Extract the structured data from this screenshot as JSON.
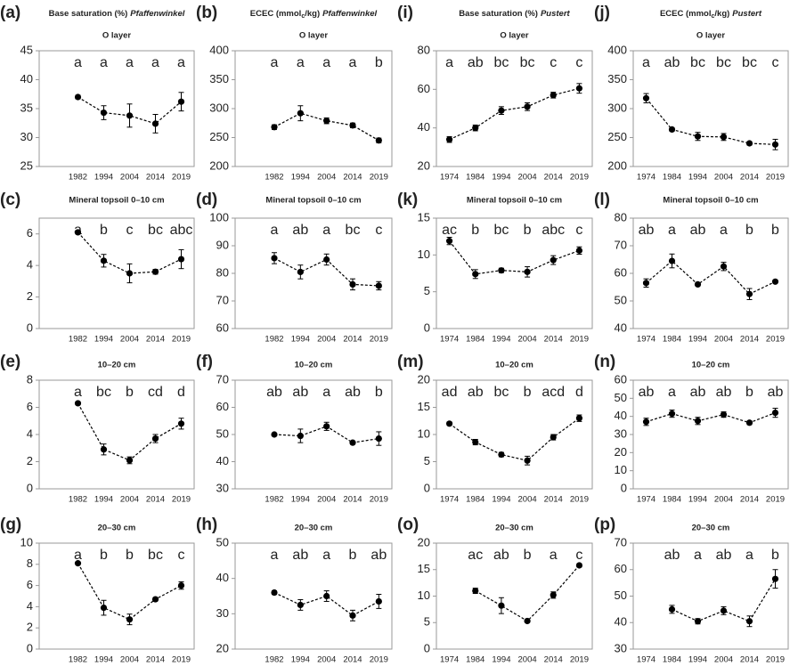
{
  "chart_data": [
    {
      "type": "line",
      "label": "(a)",
      "title": [
        "Base saturation (%)"
      ],
      "site": "Pfaffenwinkel",
      "subtitle": "O layer",
      "categories": [
        null,
        "1982",
        "1994",
        "2004",
        "2014",
        "2019"
      ],
      "values": [
        null,
        37,
        34.3,
        33.8,
        32.4,
        36.2
      ],
      "errors": [
        null,
        0.3,
        1.2,
        2,
        1.6,
        1.6
      ],
      "letters": [
        null,
        "a",
        "a",
        "a",
        "a",
        "a"
      ],
      "ylim": [
        25,
        45
      ],
      "yticks": [
        25,
        30,
        35,
        40,
        45
      ]
    },
    {
      "type": "line",
      "label": "(b)",
      "title": [
        "ECEC (mmol",
        "c",
        "/kg)"
      ],
      "site": "Pfaffenwinkel",
      "subtitle": "O layer",
      "categories": [
        null,
        "1982",
        "1994",
        "2004",
        "2014",
        "2019"
      ],
      "values": [
        null,
        268,
        292,
        279,
        271,
        245
      ],
      "errors": [
        null,
        4,
        13,
        5,
        4,
        4
      ],
      "letters": [
        null,
        "a",
        "a",
        "a",
        "a",
        "b"
      ],
      "ylim": [
        200,
        400
      ],
      "yticks": [
        200,
        250,
        300,
        350,
        400
      ]
    },
    {
      "type": "line",
      "label": "(i)",
      "title": [
        "Base saturation (%)"
      ],
      "site": "Pustert",
      "subtitle": "O layer",
      "categories": [
        "1974",
        "1984",
        "1994",
        "2004",
        "2014",
        "2019"
      ],
      "values": [
        34,
        40,
        49,
        51,
        57,
        60.5
      ],
      "errors": [
        1.5,
        1.5,
        2,
        2,
        1.5,
        2.5
      ],
      "letters": [
        "a",
        "ab",
        "bc",
        "bc",
        "c",
        "c"
      ],
      "ylim": [
        20,
        80
      ],
      "yticks": [
        20,
        40,
        60,
        80
      ]
    },
    {
      "type": "line",
      "label": "(j)",
      "title": [
        "ECEC (mmol",
        "c",
        "/kg)"
      ],
      "site": "Pustert",
      "subtitle": "O layer",
      "categories": [
        "1974",
        "1984",
        "1994",
        "2004",
        "2014",
        "2019"
      ],
      "values": [
        318,
        264,
        252,
        251,
        240,
        238
      ],
      "errors": [
        8,
        3,
        7,
        6,
        3,
        9
      ],
      "letters": [
        "a",
        "ab",
        "bc",
        "bc",
        "bc",
        "c"
      ],
      "ylim": [
        200,
        400
      ],
      "yticks": [
        200,
        250,
        300,
        350,
        400
      ]
    },
    {
      "type": "line",
      "label": "(c)",
      "subtitle": "Mineral topsoil 0–10 cm",
      "categories": [
        null,
        "1982",
        "1994",
        "2004",
        "2014",
        "2019"
      ],
      "values": [
        null,
        6.1,
        4.3,
        3.5,
        3.6,
        4.4
      ],
      "errors": [
        null,
        0.1,
        0.4,
        0.6,
        0.15,
        0.6
      ],
      "letters": [
        null,
        "a",
        "b",
        "c",
        "bc",
        "abc"
      ],
      "ylim": [
        0,
        7
      ],
      "yticks": [
        0,
        2,
        4,
        6
      ]
    },
    {
      "type": "line",
      "label": "(d)",
      "subtitle": "Mineral topsoil 0–10 cm",
      "categories": [
        null,
        "1982",
        "1994",
        "2004",
        "2014",
        "2019"
      ],
      "values": [
        null,
        85.5,
        80.5,
        85,
        76,
        75.5
      ],
      "errors": [
        null,
        2,
        2.5,
        2,
        2,
        1.5
      ],
      "letters": [
        null,
        "a",
        "ab",
        "a",
        "bc",
        "c"
      ],
      "ylim": [
        60,
        100
      ],
      "yticks": [
        60,
        70,
        80,
        90,
        100
      ]
    },
    {
      "type": "line",
      "label": "(k)",
      "subtitle": "Mineral topsoil 0–10 cm",
      "categories": [
        "1974",
        "1984",
        "1994",
        "2004",
        "2014",
        "2019"
      ],
      "values": [
        11.9,
        7.4,
        7.9,
        7.7,
        9.3,
        10.6
      ],
      "errors": [
        0.5,
        0.6,
        0.3,
        0.7,
        0.6,
        0.5
      ],
      "letters": [
        "ac",
        "b",
        "bc",
        "b",
        "abc",
        "c"
      ],
      "ylim": [
        0,
        15
      ],
      "yticks": [
        0,
        5,
        10,
        15
      ]
    },
    {
      "type": "line",
      "label": "(l)",
      "subtitle": "Mineral topsoil 0–10 cm",
      "categories": [
        "1974",
        "1984",
        "1994",
        "2004",
        "2014",
        "2019"
      ],
      "values": [
        56.5,
        64.5,
        56,
        62.5,
        52.5,
        57
      ],
      "errors": [
        1.5,
        2.5,
        0.5,
        1.5,
        2,
        0.5
      ],
      "letters": [
        "ab",
        "a",
        "ab",
        "a",
        "b",
        "b"
      ],
      "ylim": [
        40,
        80
      ],
      "yticks": [
        40,
        50,
        60,
        70,
        80
      ]
    },
    {
      "type": "line",
      "label": "(e)",
      "subtitle": "10–20 cm",
      "categories": [
        null,
        "1982",
        "1994",
        "2004",
        "2014",
        "2019"
      ],
      "values": [
        null,
        6.3,
        2.9,
        2.1,
        3.7,
        4.8
      ],
      "errors": [
        null,
        0.1,
        0.4,
        0.25,
        0.3,
        0.4
      ],
      "letters": [
        null,
        "a",
        "bc",
        "b",
        "cd",
        "d"
      ],
      "ylim": [
        0,
        8
      ],
      "yticks": [
        0,
        2,
        4,
        6,
        8
      ]
    },
    {
      "type": "line",
      "label": "(f)",
      "subtitle": "10–20 cm",
      "categories": [
        null,
        "1982",
        "1994",
        "2004",
        "2014",
        "2019"
      ],
      "values": [
        null,
        50,
        49.5,
        53,
        47,
        48.5
      ],
      "errors": [
        null,
        0.5,
        2.5,
        1.5,
        0.5,
        2.5
      ],
      "letters": [
        null,
        "ab",
        "ab",
        "a",
        "ab",
        "b"
      ],
      "ylim": [
        30,
        70
      ],
      "yticks": [
        30,
        40,
        50,
        60,
        70
      ]
    },
    {
      "type": "line",
      "label": "(m)",
      "subtitle": "10–20 cm",
      "categories": [
        "1974",
        "1984",
        "1994",
        "2004",
        "2014",
        "2019"
      ],
      "values": [
        12,
        8.6,
        6.3,
        5.2,
        9.5,
        13
      ],
      "errors": [
        0.3,
        0.5,
        0.4,
        0.8,
        0.5,
        0.6
      ],
      "letters": [
        "ad",
        "ab",
        "bc",
        "b",
        "acd",
        "d"
      ],
      "ylim": [
        0,
        20
      ],
      "yticks": [
        0,
        5,
        10,
        15,
        20
      ]
    },
    {
      "type": "line",
      "label": "(n)",
      "subtitle": "10–20 cm",
      "categories": [
        "1974",
        "1984",
        "1994",
        "2004",
        "2014",
        "2019"
      ],
      "values": [
        37,
        41.5,
        37.5,
        41,
        36.5,
        42
      ],
      "errors": [
        2,
        2,
        2,
        1.5,
        1,
        2.5
      ],
      "letters": [
        "ab",
        "a",
        "ab",
        "ab",
        "b",
        "ab"
      ],
      "ylim": [
        0,
        60
      ],
      "yticks": [
        0,
        10,
        20,
        30,
        40,
        50,
        60
      ]
    },
    {
      "type": "line",
      "label": "(g)",
      "subtitle": "20–30 cm",
      "categories": [
        null,
        "1982",
        "1994",
        "2004",
        "2014",
        "2019"
      ],
      "values": [
        null,
        8.1,
        3.9,
        2.8,
        4.7,
        6
      ],
      "errors": [
        null,
        0.1,
        0.7,
        0.5,
        0.15,
        0.35
      ],
      "letters": [
        null,
        "a",
        "b",
        "b",
        "bc",
        "c"
      ],
      "ylim": [
        0,
        10
      ],
      "yticks": [
        0,
        2,
        4,
        6,
        8,
        10
      ]
    },
    {
      "type": "line",
      "label": "(h)",
      "subtitle": "20–30 cm",
      "categories": [
        null,
        "1982",
        "1994",
        "2004",
        "2014",
        "2019"
      ],
      "values": [
        null,
        36,
        32.5,
        35,
        29.5,
        33.5
      ],
      "errors": [
        null,
        0.5,
        1.5,
        1.5,
        1.5,
        2
      ],
      "letters": [
        null,
        "a",
        "ab",
        "a",
        "b",
        "ab"
      ],
      "ylim": [
        20,
        50
      ],
      "yticks": [
        20,
        30,
        40,
        50
      ]
    },
    {
      "type": "line",
      "label": "(o)",
      "subtitle": "20–30 cm",
      "categories": [
        "1974",
        "1984",
        "1994",
        "2004",
        "2014",
        "2019"
      ],
      "values": [
        null,
        11,
        8.2,
        5.3,
        10.2,
        15.8
      ],
      "errors": [
        null,
        0.5,
        1.5,
        0.2,
        0.6,
        0.3
      ],
      "letters": [
        null,
        "ac",
        "ab",
        "b",
        "a",
        "c"
      ],
      "ylim": [
        0,
        20
      ],
      "yticks": [
        0,
        5,
        10,
        15,
        20
      ]
    },
    {
      "type": "line",
      "label": "(p)",
      "subtitle": "20–30 cm",
      "categories": [
        "1974",
        "1984",
        "1994",
        "2004",
        "2014",
        "2019"
      ],
      "values": [
        null,
        45,
        40.5,
        44.5,
        40.5,
        56.5
      ],
      "errors": [
        null,
        1.5,
        1,
        1.5,
        2,
        3.5
      ],
      "letters": [
        null,
        "ab",
        "a",
        "ab",
        "a",
        "b"
      ],
      "ylim": [
        30,
        70
      ],
      "yticks": [
        30,
        40,
        50,
        60,
        70
      ]
    }
  ]
}
